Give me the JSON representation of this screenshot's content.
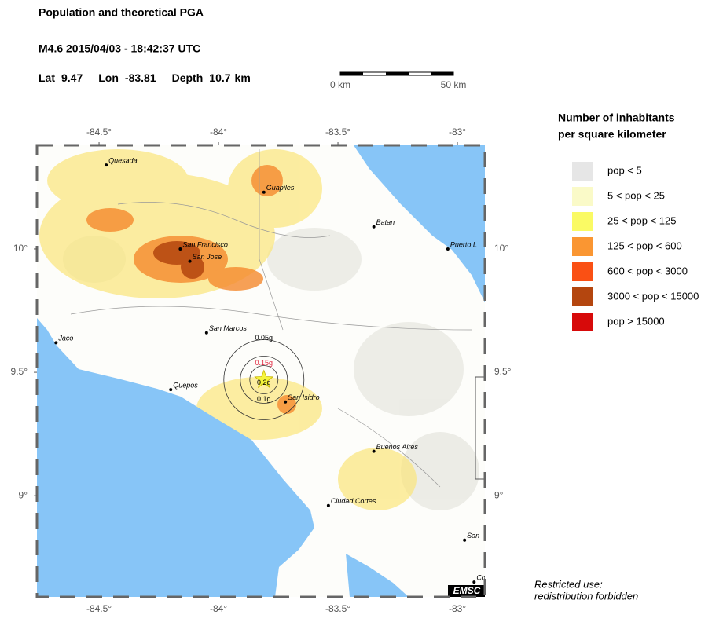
{
  "header": {
    "title": "Population and theoretical PGA",
    "event": "M4.6  2015/04/03 - 18:42:37 UTC",
    "location": [
      {
        "label": "Lat",
        "value": 9.47
      },
      {
        "label": "Lon",
        "value": -83.81
      },
      {
        "label": "Depth",
        "value": 10.7,
        "unit": "km"
      }
    ]
  },
  "scale_bar": {
    "labels": [
      "0 km",
      "50 km"
    ]
  },
  "map": {
    "xlim": [
      -84.76,
      -82.885
    ],
    "ylim": [
      8.59,
      10.42
    ],
    "xticks": [
      {
        "value": -84.5,
        "label": "-84.5°"
      },
      {
        "value": -84,
        "label": "-84°"
      },
      {
        "value": -83.5,
        "label": "-83.5°"
      },
      {
        "value": -83,
        "label": "-83°"
      }
    ],
    "yticks": [
      {
        "value": 10,
        "label": "10°"
      },
      {
        "value": 9.5,
        "label": "9.5°"
      },
      {
        "value": 9,
        "label": "9°"
      }
    ],
    "cities": [
      {
        "name": "Quesada",
        "lon": -84.47,
        "lat": 10.34
      },
      {
        "name": "Guapiles",
        "lon": -83.81,
        "lat": 10.23
      },
      {
        "name": "Batan",
        "lon": -83.35,
        "lat": 10.09
      },
      {
        "name": "Puerto L",
        "lon": -83.04,
        "lat": 10.0
      },
      {
        "name": "San Francisco",
        "lon": -84.16,
        "lat": 10.0
      },
      {
        "name": "San Jose",
        "lon": -84.12,
        "lat": 9.95
      },
      {
        "name": "San Marcos",
        "lon": -84.05,
        "lat": 9.66
      },
      {
        "name": "Jaco",
        "lon": -84.68,
        "lat": 9.62
      },
      {
        "name": "Quepos",
        "lon": -84.2,
        "lat": 9.43
      },
      {
        "name": "San Isidro",
        "lon": -83.72,
        "lat": 9.38
      },
      {
        "name": "Buenos Aires",
        "lon": -83.35,
        "lat": 9.18
      },
      {
        "name": "Ciudad Cortes",
        "lon": -83.54,
        "lat": 8.96
      },
      {
        "name": "San",
        "lon": -82.97,
        "lat": 8.82
      },
      {
        "name": "Co",
        "lon": -82.93,
        "lat": 8.65
      }
    ],
    "pga_rings": [
      {
        "label": "0.05g",
        "color": "#000000"
      },
      {
        "label": "0.15g",
        "color": "#e0203a"
      },
      {
        "label": "0.2g",
        "color": "#000000"
      },
      {
        "label": "0.1g",
        "color": "#000000"
      }
    ],
    "attribution": "EMSC"
  },
  "legend": {
    "title_lines": [
      "Number of inhabitants",
      "per square kilometer"
    ],
    "items": [
      {
        "label": "pop < 5",
        "color": "#e6e6e6"
      },
      {
        "label": "5 < pop < 25",
        "color": "#fafac8"
      },
      {
        "label": "25 < pop < 125",
        "color": "#fafa64"
      },
      {
        "label": "125 < pop < 600",
        "color": "#fa9632"
      },
      {
        "label": "600 < pop < 3000",
        "color": "#fa5014"
      },
      {
        "label": "3000 < pop < 15000",
        "color": "#b4460f"
      },
      {
        "label": "pop > 15000",
        "color": "#d70a0a"
      }
    ]
  },
  "note": [
    "Restricted use:",
    "redistribution forbidden"
  ]
}
